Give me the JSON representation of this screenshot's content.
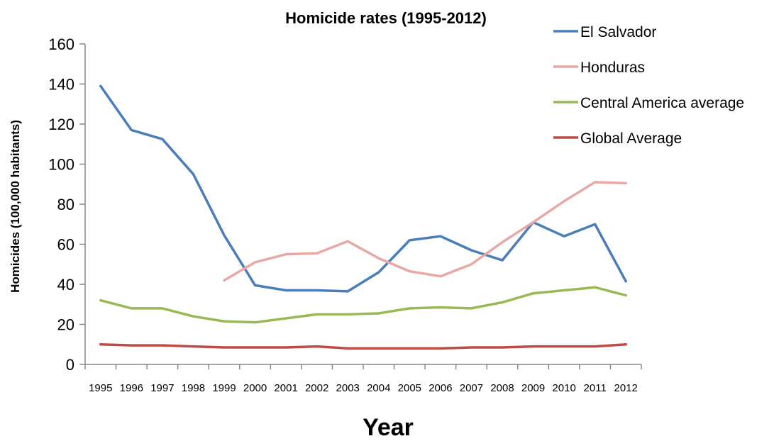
{
  "chart_data": {
    "type": "line",
    "title": "Homicide rates  (1995-2012)",
    "xlabel": "Year",
    "ylabel": "Homicides (100,000 habitants)",
    "ylim": [
      0,
      160
    ],
    "yticks": [
      0,
      20,
      40,
      60,
      80,
      100,
      120,
      140,
      160
    ],
    "grid": false,
    "legend_position": "top-right",
    "categories": [
      "1995",
      "1996",
      "1997",
      "1998",
      "1999",
      "2000",
      "2001",
      "2002",
      "2003",
      "2004",
      "2005",
      "2006",
      "2007",
      "2008",
      "2009",
      "2010",
      "2011",
      "2012"
    ],
    "series": [
      {
        "name": "El Salvador",
        "color": "#4a7ebb",
        "values": [
          139,
          117,
          112.5,
          95,
          64.5,
          39.5,
          37,
          37,
          36.5,
          46,
          62,
          64,
          57,
          52,
          71,
          64,
          70,
          41.5
        ]
      },
      {
        "name": "Honduras",
        "color": "#e8a8a6",
        "values": [
          null,
          null,
          null,
          null,
          42,
          51,
          55,
          55.5,
          61.5,
          53,
          46.5,
          44,
          50,
          61,
          71,
          81.5,
          91,
          90.5
        ]
      },
      {
        "name": "Central America average",
        "color": "#98b954",
        "values": [
          32,
          28,
          28,
          24,
          21.5,
          21,
          23,
          25,
          25,
          25.5,
          28,
          28.5,
          28,
          31,
          35.5,
          37,
          38.5,
          34.5
        ]
      },
      {
        "name": "Global Average",
        "color": "#be4b48",
        "values": [
          10,
          9.5,
          9.5,
          9,
          8.5,
          8.5,
          8.5,
          9,
          8,
          8,
          8,
          8,
          8.5,
          8.5,
          9,
          9,
          9,
          10
        ]
      }
    ]
  }
}
